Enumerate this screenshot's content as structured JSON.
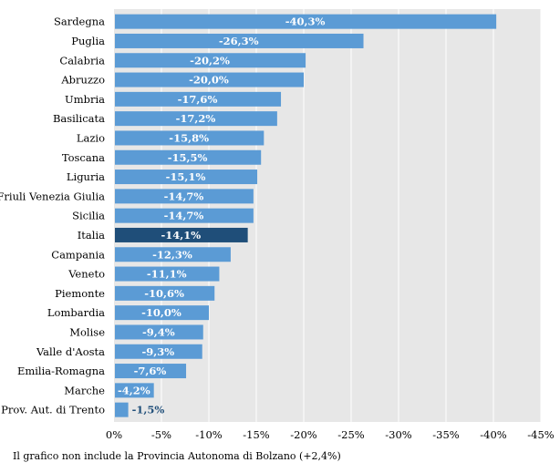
{
  "chart_data": {
    "type": "bar",
    "orientation": "horizontal",
    "categories": [
      "Sardegna",
      "Puglia",
      "Calabria",
      "Abruzzo",
      "Umbria",
      "Basilicata",
      "Lazio",
      "Toscana",
      "Liguria",
      "Friuli Venezia Giulia",
      "Sicilia",
      "Italia",
      "Campania",
      "Veneto",
      "Piemonte",
      "Lombardia",
      "Molise",
      "Valle d'Aosta",
      "Emilia-Romagna",
      "Marche",
      "Prov. Aut. di Trento"
    ],
    "values": [
      -40.3,
      -26.3,
      -20.2,
      -20.0,
      -17.6,
      -17.2,
      -15.8,
      -15.5,
      -15.1,
      -14.7,
      -14.7,
      -14.1,
      -12.3,
      -11.1,
      -10.6,
      -10.0,
      -9.4,
      -9.3,
      -7.6,
      -4.2,
      -1.5
    ],
    "labels": [
      "-40,3%",
      "-26,3%",
      "-20,2%",
      "-20,0%",
      "-17,6%",
      "-17,2%",
      "-15,8%",
      "-15,5%",
      "-15,1%",
      "-14,7%",
      "-14,7%",
      "-14,1%",
      "-12,3%",
      "-11,1%",
      "-10,6%",
      "-10,0%",
      "-9,4%",
      "-9,3%",
      "-7,6%",
      "-4,2%",
      "-1,5%"
    ],
    "highlight": "Italia",
    "xlim": [
      0,
      -45
    ],
    "xticks": [
      0,
      -5,
      -10,
      -15,
      -20,
      -25,
      -30,
      -35,
      -40,
      -45
    ],
    "xtick_labels": [
      "0%",
      "-5%",
      "-10%",
      "-15%",
      "-20%",
      "-25%",
      "-30%",
      "-35%",
      "-40%",
      "-45%"
    ],
    "grid": true,
    "colors": {
      "bar": "#5b9bd5",
      "highlight": "#1f4e79",
      "plot_bg": "#e7e7e7",
      "grid": "#ffffff"
    }
  },
  "footnote": "Il grafico non include la Provincia Autonoma di Bolzano (+2,4%)"
}
